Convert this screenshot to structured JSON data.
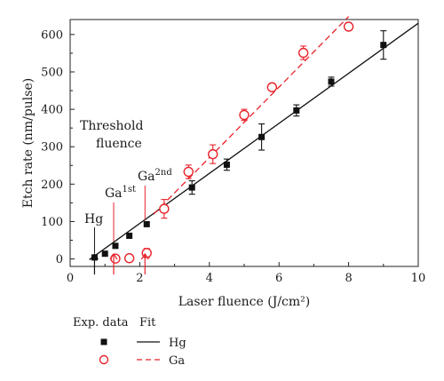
{
  "chart_data": {
    "type": "scatter",
    "xlabel": "Laser fluence (J/cm²)",
    "ylabel": "Etch rate (nm/pulse)",
    "xlim": [
      0,
      10
    ],
    "ylim": [
      -20,
      640
    ],
    "xticks": [
      0,
      2,
      4,
      6,
      8,
      10
    ],
    "yticks": [
      0,
      100,
      200,
      300,
      400,
      500,
      600
    ],
    "grid": false,
    "series": [
      {
        "name": "Hg",
        "marker": "filled-square",
        "color": "#111111",
        "x": [
          0.7,
          1.0,
          1.3,
          1.7,
          2.2,
          3.5,
          4.5,
          5.5,
          6.5,
          7.5,
          9.0
        ],
        "y": [
          4,
          14,
          35,
          62,
          93,
          191,
          252,
          326,
          397,
          474,
          572
        ],
        "err": [
          0,
          0,
          0,
          0,
          0,
          18,
          15,
          35,
          15,
          12,
          38
        ],
        "fit": {
          "style": "solid",
          "x": [
            0.55,
            10
          ],
          "y": [
            -2,
            630
          ]
        }
      },
      {
        "name": "Ga",
        "marker": "open-circle",
        "color": "#e8232b",
        "x": [
          1.3,
          1.7,
          2.2,
          2.7,
          3.4,
          4.1,
          5.0,
          5.8,
          6.7,
          8.0
        ],
        "y": [
          1,
          2,
          16,
          134,
          233,
          280,
          385,
          459,
          551,
          621
        ],
        "err": [
          0,
          0,
          12,
          25,
          18,
          25,
          15,
          10,
          18,
          10
        ],
        "fit": {
          "style": "dashed",
          "x": [
            2.4,
            8.0
          ],
          "y": [
            120,
            648
          ]
        }
      }
    ],
    "annotations": {
      "threshold": [
        "Threshold",
        "fluence"
      ],
      "hg_label": "Hg",
      "ga1_base": "Ga",
      "ga1_sup": "1st",
      "ga2_base": "Ga",
      "ga2_sup": "2nd",
      "arrows": [
        {
          "label": "Hg",
          "x": 0.7,
          "color": "#111111"
        },
        {
          "label": "Ga1st",
          "x": 1.25,
          "color": "#e8232b"
        },
        {
          "label": "Ga2nd",
          "x": 2.15,
          "color": "#e8232b"
        }
      ]
    },
    "legend": {
      "placement": "bottom-left",
      "header_exp": "Exp. data",
      "header_fit": "Fit",
      "items": [
        {
          "label": "Hg",
          "series": 0
        },
        {
          "label": "Ga",
          "series": 1
        }
      ]
    }
  }
}
